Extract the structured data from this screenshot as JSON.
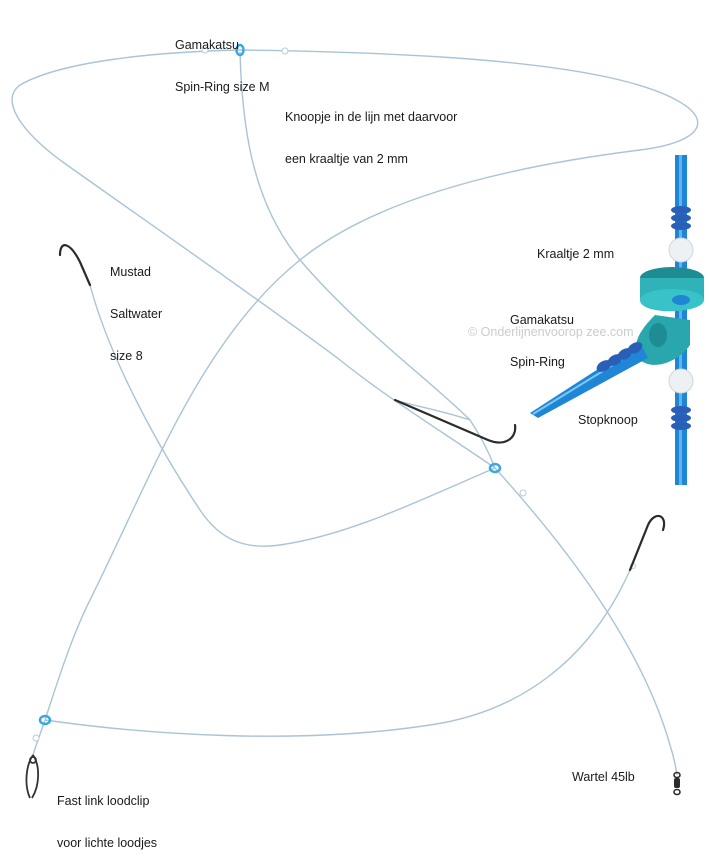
{
  "labels": {
    "spin_ring_main": [
      "Gamakatsu",
      "Spin-Ring size M"
    ],
    "knot_note": [
      "Knoopje in de lijn met daarvoor",
      "een kraaltje van 2 mm"
    ],
    "hook": [
      "Mustad",
      "Saltwater",
      "size 8"
    ],
    "bead": "Kraaltje 2 mm",
    "spin_ring_detail": [
      "Gamakatsu",
      "Spin-Ring"
    ],
    "stop_knot": "Stopknoop",
    "lead_clip": [
      "Fast link loodclip",
      "voor lichte loodjes"
    ],
    "swivel": "Wartel 45lb"
  },
  "watermark": "© Onderlijnenvoorop zee.com",
  "colors": {
    "line": "#a9c4d6",
    "ring": "#3aa8e0",
    "hook": "#2b2b2b",
    "detail_line": "#1f86d6",
    "knot": "#2a5fb8",
    "spin_ring_body": "#2fb3b9",
    "bead": "#eef1f3"
  },
  "icons": [
    "hook-icon",
    "spin-ring-icon",
    "bead-icon",
    "swivel-icon",
    "lead-clip-icon",
    "knot-icon"
  ]
}
